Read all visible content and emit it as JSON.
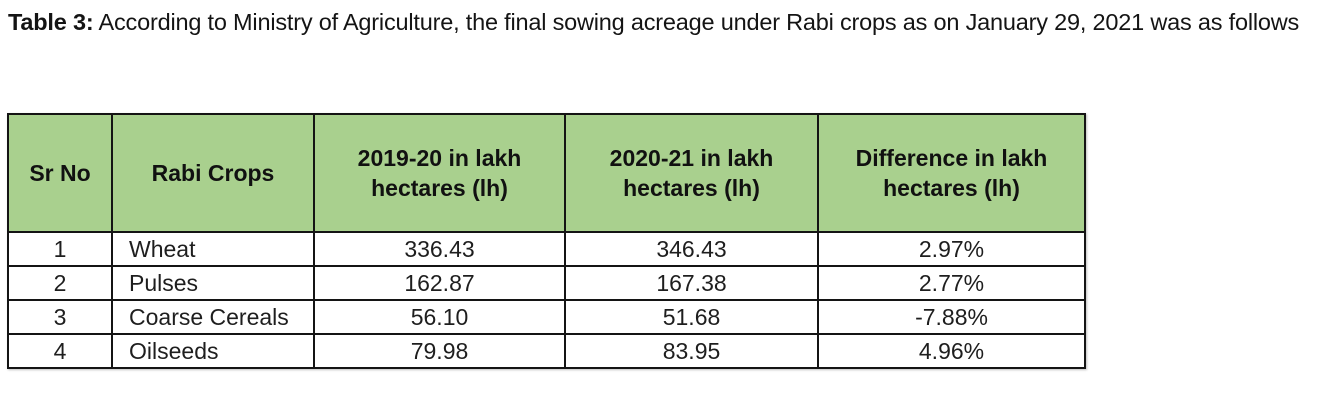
{
  "caption": {
    "lead": "Table 3:",
    "text": " According to Ministry of Agriculture, the final sowing acreage under Rabi crops as on January 29, 2021 was as follows"
  },
  "table": {
    "header_color": "#a9d08e",
    "columns": [
      "Sr No",
      "Rabi Crops",
      "2019-20 in lakh hectares (lh)",
      "2020-21 in lakh hectares (lh)",
      "Difference in lakh hectares (lh)"
    ],
    "rows": [
      [
        "1",
        "Wheat",
        "336.43",
        "346.43",
        "2.97%"
      ],
      [
        "2",
        "Pulses",
        "162.87",
        "167.38",
        "2.77%"
      ],
      [
        "3",
        "Coarse Cereals",
        "56.10",
        "51.68",
        "-7.88%"
      ],
      [
        "4",
        "Oilseeds",
        "79.98",
        "83.95",
        "4.96%"
      ]
    ]
  }
}
